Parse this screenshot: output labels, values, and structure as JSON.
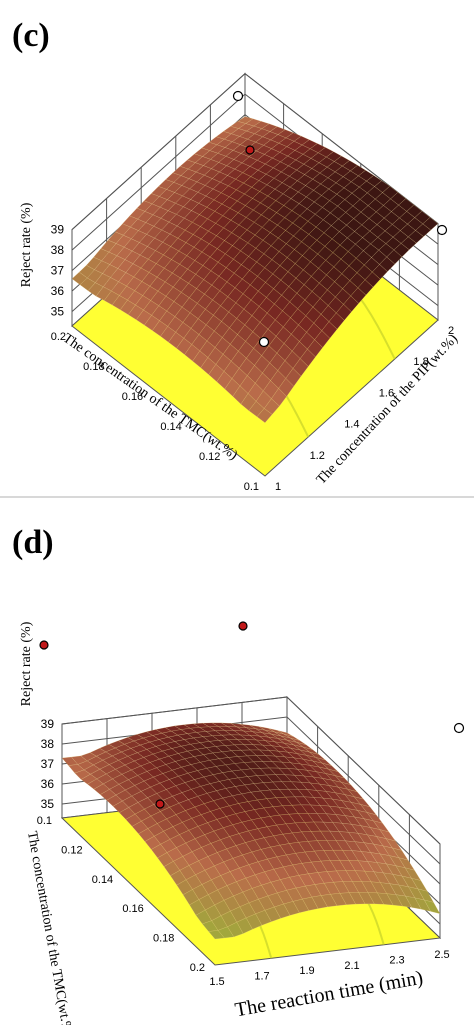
{
  "colors": {
    "floor": "#ffff33",
    "floor_contour": "#c6d22a",
    "surface_high": "#6b1f1f",
    "surface_mid": "#b96b4a",
    "surface_low": "#9db43a",
    "mesh_line": "#e8d08a",
    "point_fill": "#ffffff",
    "point_red": "#c0181a"
  },
  "chart_data": [
    {
      "panel": "(c)",
      "type": "surface3d",
      "zlabel": "Reject rate (%)",
      "xlabel": "The concentration of the TMC(wt.%)",
      "ylabel": "The concentration of the PIP(wt.%)",
      "x_ticks": [
        "0.1",
        "0.12",
        "0.14",
        "0.16",
        "0.18",
        "0.2"
      ],
      "y_ticks": [
        "1",
        "1.2",
        "1.4",
        "1.6",
        "1.8",
        "2"
      ],
      "z_ticks": [
        "35",
        "36",
        "37",
        "38",
        "39"
      ],
      "xlim": [
        0.1,
        0.2
      ],
      "ylim": [
        1,
        2
      ],
      "zlim": [
        34.3,
        39
      ],
      "corner_values": {
        "tmc0.1_pip1": 36.6,
        "tmc0.2_pip1": 36.9,
        "tmc0.2_pip2": 39.0,
        "tmc0.1_pip2": 36.9
      },
      "peak": {
        "tmc": 0.15,
        "pip": 1.55,
        "z": 38.6
      },
      "design_points": [
        {
          "tmc": 0.1,
          "pip": 2,
          "z": 36.9,
          "marker": "open"
        },
        {
          "tmc": 0.2,
          "pip": 2,
          "z": 39.0,
          "marker": "open"
        },
        {
          "tmc": 0.15,
          "pip": 1.5,
          "z": 38.5,
          "marker": "red"
        }
      ],
      "floor_points": [
        {
          "tmc": 0.1,
          "pip": 1,
          "marker": "open"
        }
      ]
    },
    {
      "panel": "(d)",
      "type": "surface3d",
      "zlabel": "Reject rate (%)",
      "xlabel": "The reaction time (min)",
      "ylabel": "The concentration of the TMC(wt.%)",
      "x_ticks": [
        "1.5",
        "1.7",
        "1.9",
        "2.1",
        "2.3",
        "2.5"
      ],
      "y_ticks": [
        "0.1",
        "0.12",
        "0.14",
        "0.16",
        "0.18",
        "0.2"
      ],
      "z_ticks": [
        "35",
        "36",
        "37",
        "38",
        "39"
      ],
      "xlim": [
        1.5,
        2.5
      ],
      "ylim": [
        0.1,
        0.2
      ],
      "zlim": [
        34.3,
        39
      ],
      "corner_values": {
        "t1.5_tmc0.1": 37.3,
        "t1.5_tmc0.2": 35.6,
        "t2.5_tmc0.2": 35.5,
        "t2.5_tmc0.1": 37.2
      },
      "peak": {
        "t": 2.0,
        "tmc": 0.14,
        "z": 38.6
      },
      "design_points": [
        {
          "t": 1.5,
          "tmc": 0.1,
          "z": 37.3,
          "marker": "red"
        },
        {
          "t": 1.5,
          "tmc": 0.2,
          "z": 35.6,
          "marker": "red"
        },
        {
          "t": 2.5,
          "tmc": 0.2,
          "z": 35.5,
          "marker": "open"
        },
        {
          "t": 2.0,
          "tmc": 0.15,
          "z": 38.2,
          "marker": "red"
        }
      ]
    }
  ]
}
